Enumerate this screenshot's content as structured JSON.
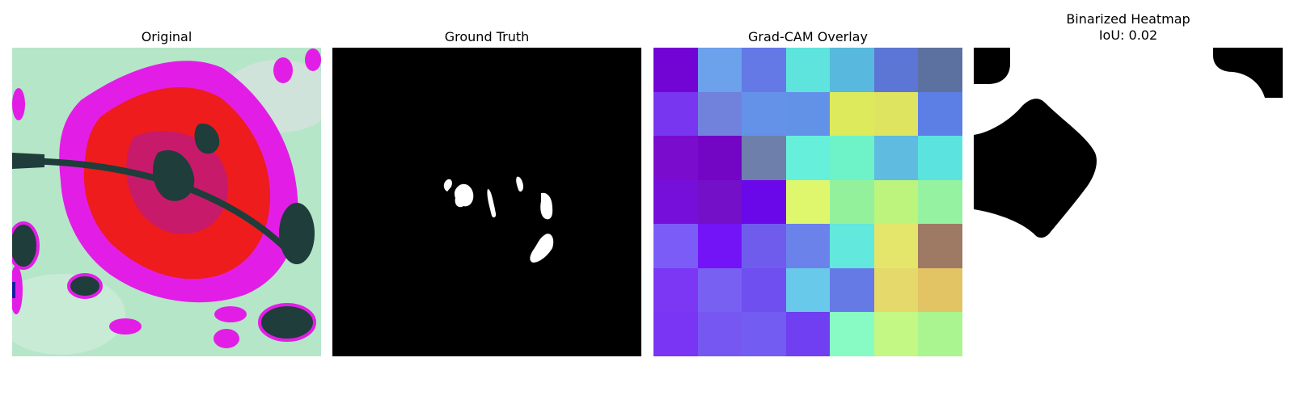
{
  "panels": [
    {
      "title": "Original",
      "subtitle": ""
    },
    {
      "title": "Ground Truth",
      "subtitle": ""
    },
    {
      "title": "Grad-CAM Overlay",
      "subtitle": ""
    },
    {
      "title": "Binarized Heatmap",
      "subtitle": "IoU: 0.02"
    }
  ],
  "gradcam_grid": [
    [
      "#7205d4",
      "#6ca1ec",
      "#6479e6",
      "#5fe3dd",
      "#59b8dd",
      "#5b76d4",
      "#5c71a0"
    ],
    [
      "#7936f1",
      "#7182dc",
      "#6492e9",
      "#6192e7",
      "#dcea5b",
      "#dfe460",
      "#5c7fe6"
    ],
    [
      "#7a0dcd",
      "#7305c5",
      "#6e7fab",
      "#66f0db",
      "#6ef2c8",
      "#5fbbe0",
      "#5be3df"
    ],
    [
      "#770fda",
      "#7410c7",
      "#6a08e9",
      "#dff76d",
      "#93f19b",
      "#bcf47d",
      "#94f2a0"
    ],
    [
      "#7c5cf7",
      "#7214f6",
      "#6f5ced",
      "#6a82ea",
      "#62e8dd",
      "#e3e66a",
      "#9e7a64"
    ],
    [
      "#7b37f4",
      "#7760f2",
      "#6f4ff0",
      "#69c9ea",
      "#667ae5",
      "#e4d96a",
      "#e2c465"
    ],
    [
      "#7a34f4",
      "#7757f2",
      "#725cf2",
      "#703ff1",
      "#88fbc4",
      "#c3f885",
      "#aaf590"
    ]
  ],
  "colors": {
    "original_background": "#b6e6c8",
    "leaf_magenta": "#e21ee6",
    "leaf_red": "#ee1c1c",
    "leaf_dark": "#1f3d3a",
    "mask_background": "#000000",
    "mask_foreground": "#ffffff"
  }
}
